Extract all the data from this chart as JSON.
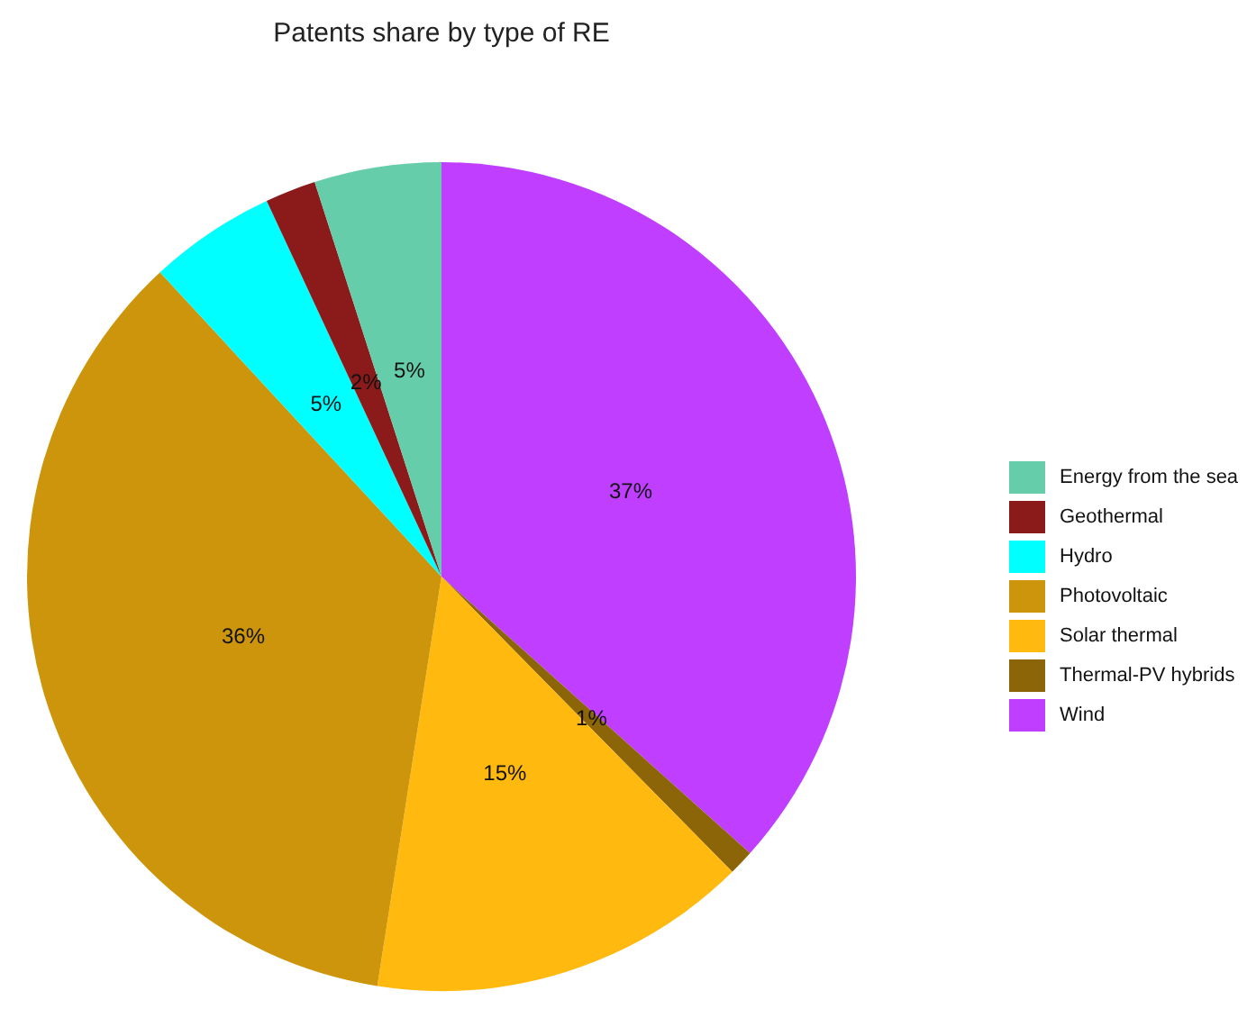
{
  "chart_data": {
    "type": "pie",
    "title": "Patents share by type of RE",
    "categories": [
      "Energy from the sea",
      "Geothermal",
      "Hydro",
      "Photovoltaic",
      "Solar thermal",
      "Thermal-PV hybrids",
      "Wind"
    ],
    "values": [
      5,
      2,
      5,
      36,
      15,
      1,
      37
    ],
    "value_labels": [
      "5%",
      "2%",
      "5%",
      "36%",
      "15%",
      "1%",
      "37%"
    ],
    "colors": [
      "#66cdaa",
      "#8b1a1a",
      "#00ffff",
      "#cd950c",
      "#ffb90f",
      "#8b6508",
      "#bf3eff"
    ],
    "legend": "right"
  }
}
